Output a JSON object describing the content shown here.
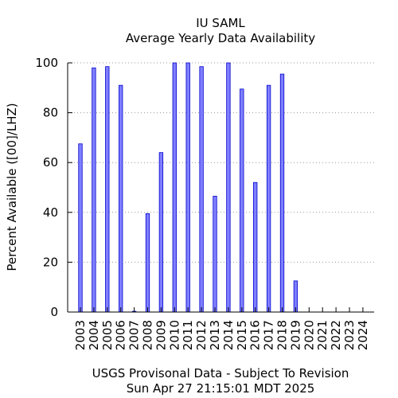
{
  "chart_data": {
    "type": "bar",
    "title": "IU SAML",
    "subtitle": "Average Yearly Data Availability",
    "ylabel": "Percent Available ([00]/LHZ)",
    "xlabel": "",
    "footer_line1": "USGS Provisonal Data - Subject To Revision",
    "footer_line2": "Sun Apr 27 21:15:01 MDT 2025",
    "categories": [
      "2003",
      "2004",
      "2005",
      "2006",
      "2007",
      "2008",
      "2009",
      "2010",
      "2011",
      "2012",
      "2013",
      "2014",
      "2015",
      "2016",
      "2017",
      "2018",
      "2019",
      "2020",
      "2021",
      "2022",
      "2023",
      "2024"
    ],
    "values": [
      67.5,
      98,
      98.5,
      91,
      0.3,
      39.5,
      64,
      100,
      100,
      98.5,
      46.5,
      100,
      89.5,
      52,
      91,
      95.5,
      12.5,
      0,
      0,
      0,
      0,
      0
    ],
    "yticks": [
      0,
      20,
      40,
      60,
      80,
      100
    ],
    "ylim": [
      0,
      100
    ],
    "grid": "horizontal dotted",
    "colors": {
      "bar_fill": "#7f7fff",
      "bar_stroke": "#0000cc",
      "grid": "#999999"
    }
  }
}
